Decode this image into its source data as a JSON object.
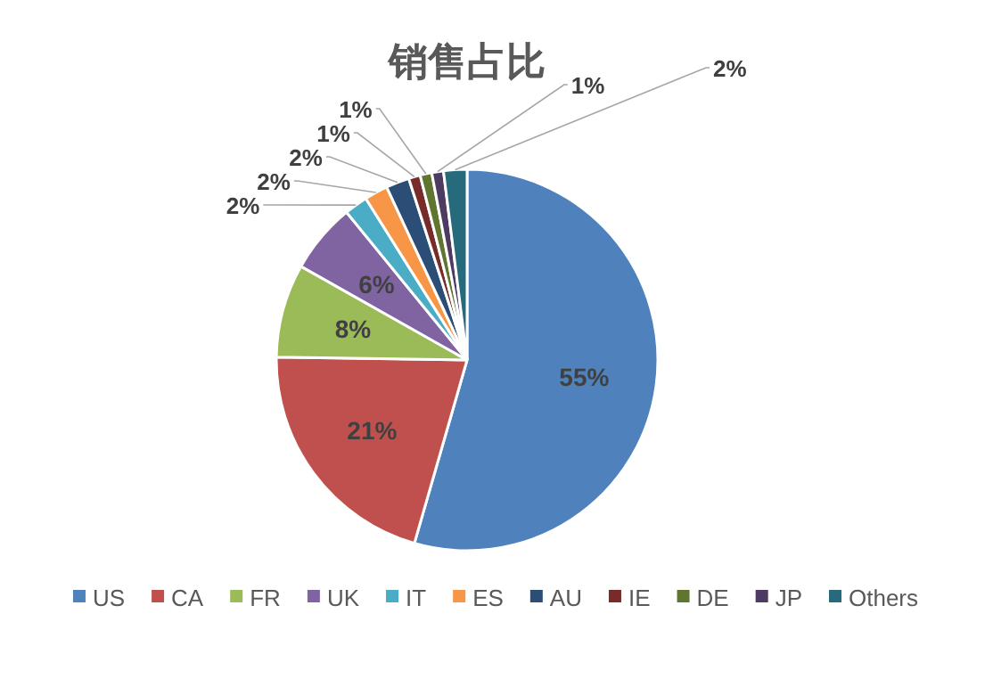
{
  "chart_data": {
    "type": "pie",
    "title": "销售占比",
    "categories": [
      "US",
      "CA",
      "FR",
      "UK",
      "IT",
      "ES",
      "AU",
      "IE",
      "DE",
      "JP",
      "Others"
    ],
    "values": [
      55,
      21,
      8,
      6,
      2,
      2,
      2,
      1,
      1,
      1,
      2
    ],
    "value_labels": [
      "55%",
      "21%",
      "8%",
      "6%",
      "2%",
      "2%",
      "2%",
      "1%",
      "1%",
      "1%",
      "2%"
    ],
    "colors": [
      "#4f81bd",
      "#c0504d",
      "#9bbb59",
      "#8064a2",
      "#4bacc6",
      "#f79646",
      "#2c4d75",
      "#772c2a",
      "#5f7530",
      "#4d3b62",
      "#276a7c"
    ],
    "legend": "bottom"
  }
}
